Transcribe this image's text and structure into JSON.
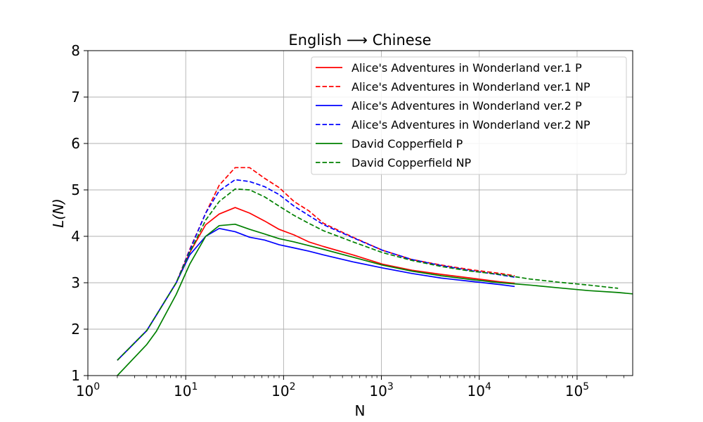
{
  "chart_data": {
    "type": "line",
    "title": "English ⟶ Chinese",
    "xlabel": "N",
    "ylabel": "L(N)",
    "xscale": "log",
    "xlim": [
      1,
      370000
    ],
    "ylim": [
      1,
      8
    ],
    "xticks": [
      {
        "value": 1,
        "base": "10",
        "exp": "0"
      },
      {
        "value": 10,
        "base": "10",
        "exp": "1"
      },
      {
        "value": 100,
        "base": "10",
        "exp": "2"
      },
      {
        "value": 1000,
        "base": "10",
        "exp": "3"
      },
      {
        "value": 10000,
        "base": "10",
        "exp": "4"
      },
      {
        "value": 100000,
        "base": "10",
        "exp": "5"
      }
    ],
    "yticks": [
      "1",
      "2",
      "3",
      "4",
      "5",
      "6",
      "7",
      "8"
    ],
    "grid": true,
    "legend_position": "upper-right",
    "series": [
      {
        "name": "Alice's Adventures in Wonderland ver.1 P",
        "color": "#ff0000",
        "dash": "solid",
        "points": [
          [
            2,
            1.33
          ],
          [
            4,
            1.97
          ],
          [
            5,
            2.3
          ],
          [
            8,
            3.0
          ],
          [
            11,
            3.65
          ],
          [
            16,
            4.25
          ],
          [
            22,
            4.48
          ],
          [
            32,
            4.62
          ],
          [
            45,
            4.5
          ],
          [
            64,
            4.33
          ],
          [
            90,
            4.15
          ],
          [
            128,
            4.03
          ],
          [
            181,
            3.88
          ],
          [
            256,
            3.78
          ],
          [
            512,
            3.6
          ],
          [
            1024,
            3.4
          ],
          [
            2048,
            3.27
          ],
          [
            4096,
            3.18
          ],
          [
            8192,
            3.1
          ],
          [
            16384,
            3.02
          ],
          [
            23000,
            2.99
          ]
        ]
      },
      {
        "name": "Alice's Adventures in Wonderland ver.1 NP",
        "color": "#ff0000",
        "dash": "dashed",
        "points": [
          [
            2,
            1.33
          ],
          [
            4,
            1.97
          ],
          [
            5,
            2.3
          ],
          [
            8,
            3.0
          ],
          [
            11,
            3.72
          ],
          [
            16,
            4.5
          ],
          [
            22,
            5.1
          ],
          [
            32,
            5.48
          ],
          [
            45,
            5.48
          ],
          [
            64,
            5.25
          ],
          [
            90,
            5.05
          ],
          [
            128,
            4.75
          ],
          [
            181,
            4.55
          ],
          [
            256,
            4.28
          ],
          [
            512,
            3.98
          ],
          [
            1024,
            3.7
          ],
          [
            2048,
            3.5
          ],
          [
            4096,
            3.38
          ],
          [
            8192,
            3.28
          ],
          [
            16384,
            3.2
          ],
          [
            23000,
            3.15
          ]
        ]
      },
      {
        "name": "Alice's Adventures in Wonderland ver.2 P",
        "color": "#0000ff",
        "dash": "solid",
        "points": [
          [
            2,
            1.33
          ],
          [
            4,
            1.97
          ],
          [
            5,
            2.3
          ],
          [
            8,
            3.0
          ],
          [
            11,
            3.6
          ],
          [
            16,
            4.0
          ],
          [
            22,
            4.17
          ],
          [
            32,
            4.1
          ],
          [
            45,
            3.98
          ],
          [
            64,
            3.92
          ],
          [
            90,
            3.82
          ],
          [
            128,
            3.75
          ],
          [
            181,
            3.68
          ],
          [
            256,
            3.6
          ],
          [
            512,
            3.45
          ],
          [
            1024,
            3.32
          ],
          [
            2048,
            3.2
          ],
          [
            4096,
            3.1
          ],
          [
            8192,
            3.03
          ],
          [
            16384,
            2.96
          ],
          [
            23000,
            2.92
          ]
        ]
      },
      {
        "name": "Alice's Adventures in Wonderland ver.2 NP",
        "color": "#0000ff",
        "dash": "dashed",
        "points": [
          [
            2,
            1.33
          ],
          [
            4,
            1.97
          ],
          [
            5,
            2.3
          ],
          [
            8,
            3.0
          ],
          [
            11,
            3.7
          ],
          [
            16,
            4.5
          ],
          [
            22,
            4.98
          ],
          [
            32,
            5.22
          ],
          [
            45,
            5.18
          ],
          [
            64,
            5.07
          ],
          [
            90,
            4.9
          ],
          [
            128,
            4.65
          ],
          [
            181,
            4.45
          ],
          [
            256,
            4.25
          ],
          [
            512,
            3.97
          ],
          [
            1024,
            3.7
          ],
          [
            2048,
            3.5
          ],
          [
            4096,
            3.37
          ],
          [
            8192,
            3.26
          ],
          [
            16384,
            3.17
          ],
          [
            23000,
            3.12
          ]
        ]
      },
      {
        "name": "David Copperfield P",
        "color": "#008000",
        "dash": "solid",
        "points": [
          [
            2,
            1.0
          ],
          [
            4,
            1.67
          ],
          [
            5,
            1.95
          ],
          [
            8,
            2.75
          ],
          [
            11,
            3.4
          ],
          [
            16,
            4.0
          ],
          [
            22,
            4.23
          ],
          [
            32,
            4.26
          ],
          [
            45,
            4.15
          ],
          [
            64,
            4.05
          ],
          [
            90,
            3.95
          ],
          [
            128,
            3.88
          ],
          [
            181,
            3.8
          ],
          [
            256,
            3.72
          ],
          [
            512,
            3.55
          ],
          [
            1024,
            3.38
          ],
          [
            2048,
            3.25
          ],
          [
            4096,
            3.15
          ],
          [
            8192,
            3.07
          ],
          [
            16384,
            3.0
          ],
          [
            32768,
            2.95
          ],
          [
            65536,
            2.89
          ],
          [
            131072,
            2.83
          ],
          [
            262144,
            2.79
          ],
          [
            370000,
            2.76
          ]
        ]
      },
      {
        "name": "David Copperfield NP",
        "color": "#008000",
        "dash": "dashed",
        "points": [
          [
            2,
            1.33
          ],
          [
            4,
            1.97
          ],
          [
            5,
            2.3
          ],
          [
            8,
            3.0
          ],
          [
            11,
            3.65
          ],
          [
            16,
            4.35
          ],
          [
            22,
            4.75
          ],
          [
            32,
            5.02
          ],
          [
            45,
            5.0
          ],
          [
            64,
            4.85
          ],
          [
            90,
            4.65
          ],
          [
            128,
            4.45
          ],
          [
            181,
            4.28
          ],
          [
            256,
            4.12
          ],
          [
            512,
            3.88
          ],
          [
            1024,
            3.65
          ],
          [
            2048,
            3.48
          ],
          [
            4096,
            3.35
          ],
          [
            8192,
            3.25
          ],
          [
            16384,
            3.18
          ],
          [
            32768,
            3.08
          ],
          [
            65536,
            3.01
          ],
          [
            131072,
            2.95
          ],
          [
            262144,
            2.88
          ]
        ]
      }
    ]
  }
}
